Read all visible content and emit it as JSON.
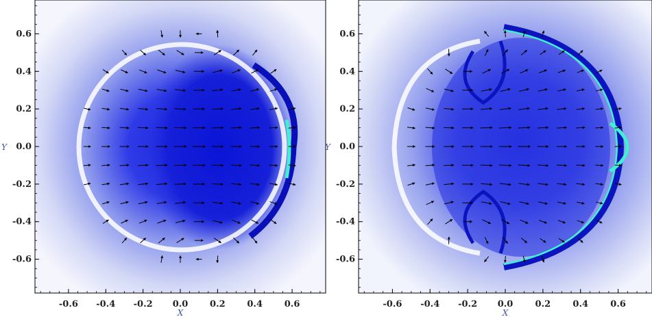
{
  "chart_data": [
    {
      "type": "vector-field",
      "panel": "left",
      "xlabel": "X",
      "ylabel": "Y",
      "xlim": [
        -0.78,
        0.78
      ],
      "ylim": [
        -0.78,
        0.78
      ],
      "xticks": [
        "-0.6",
        "-0.4",
        "-0.2",
        "0.0",
        "0.2",
        "0.4",
        "0.6"
      ],
      "yticks": [
        "0.6",
        "0.4",
        "0.2",
        "0.0",
        "-0.2",
        "-0.4",
        "-0.6"
      ],
      "xtick_values": [
        -0.6,
        -0.4,
        -0.2,
        0.0,
        0.2,
        0.4,
        0.6
      ],
      "ytick_values": [
        0.6,
        0.4,
        0.2,
        0.0,
        -0.2,
        -0.4,
        -0.6
      ],
      "colormap": [
        "#ffffff",
        "#c9cff2",
        "#5060ee",
        "#1018d8",
        "#40f0d0"
      ],
      "ring_center": [
        0.05,
        0.0
      ],
      "ring_radius": 0.55,
      "vortex_centers": [
        [
          0.1,
          0.55
        ],
        [
          0.1,
          -0.55
        ]
      ],
      "grid_on": false
    },
    {
      "type": "vector-field",
      "panel": "right",
      "xlabel": "X",
      "ylabel": "Y",
      "xlim": [
        -0.78,
        0.78
      ],
      "ylim": [
        -0.78,
        0.78
      ],
      "xticks": [
        "-0.6",
        "-0.4",
        "-0.2",
        "0.0",
        "0.2",
        "0.4",
        "0.6"
      ],
      "yticks": [
        "0.6",
        "0.4",
        "0.2",
        "0.0",
        "-0.2",
        "-0.4",
        "-0.6"
      ],
      "xtick_values": [
        -0.6,
        -0.4,
        -0.2,
        0.0,
        0.2,
        0.4,
        0.6
      ],
      "ytick_values": [
        0.6,
        0.4,
        0.2,
        0.0,
        -0.2,
        -0.4,
        -0.6
      ],
      "colormap": [
        "#ffffff",
        "#c9cff2",
        "#5060ee",
        "#1018d8",
        "#40f0d0"
      ],
      "bow_shock_x": 0.65,
      "vortex_centers": [
        [
          -0.2,
          0.45
        ],
        [
          -0.2,
          -0.45
        ]
      ],
      "grid_on": false
    }
  ]
}
